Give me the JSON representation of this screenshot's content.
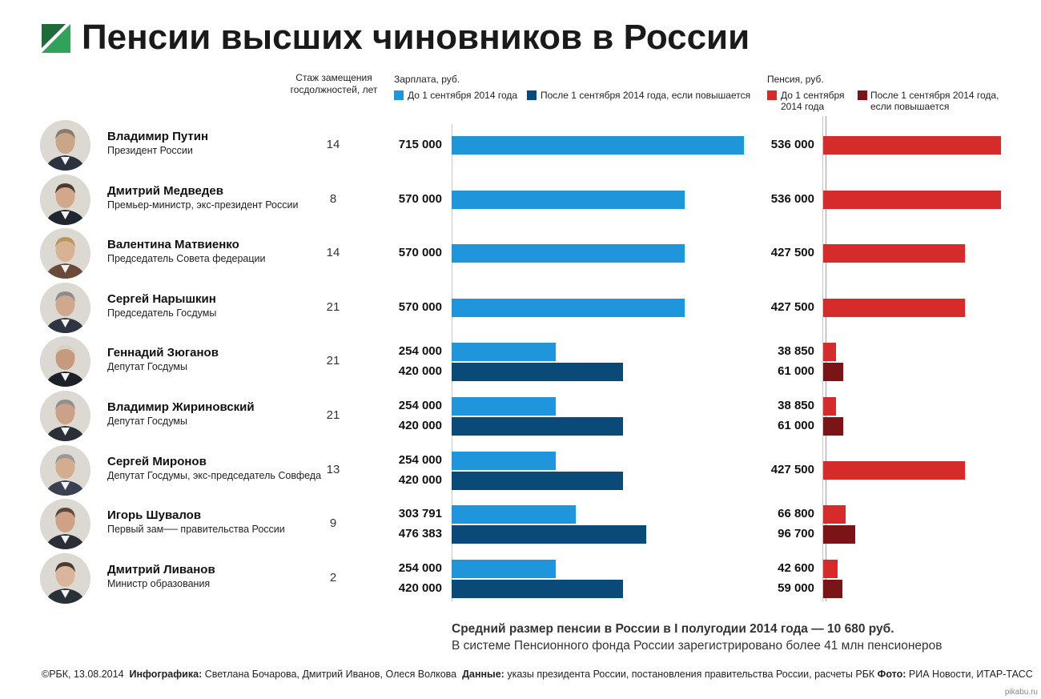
{
  "title": "Пенсии высших чиновников в России",
  "headers": {
    "tenure": "Стаж замещения госдолжностей, лет",
    "salary": "Зарплата, руб.",
    "pension": "Пенсия, руб."
  },
  "legend": {
    "salary_before": "До 1 сентября 2014 года",
    "salary_after": "После 1 сентября 2014 года, если повышается",
    "pension_before": "До 1 сентября 2014 года",
    "pension_after": "После 1 сентября 2014 года, если повышается"
  },
  "colors": {
    "salary_before": "#1f96dc",
    "salary_after": "#0a4a78",
    "pension_before": "#d62b2b",
    "pension_after": "#7a1416",
    "logo_green": "#1f6b3a"
  },
  "chart_data": {
    "type": "bar",
    "title": "Пенсии высших чиновников в России",
    "salary_axis_max": 715000,
    "pension_axis_max": 536000,
    "rows": [
      {
        "name": "Владимир Путин",
        "role": "Президент России",
        "tenure": "14",
        "salary_before": 715000,
        "salary_before_label": "715 000",
        "salary_after": null,
        "salary_after_label": null,
        "pension_before": 536000,
        "pension_before_label": "536 000",
        "pension_after": null,
        "pension_after_label": null
      },
      {
        "name": "Дмитрий Медведев",
        "role": "Премьер-министр, экс-президент России",
        "tenure": "8",
        "salary_before": 570000,
        "salary_before_label": "570 000",
        "salary_after": null,
        "salary_after_label": null,
        "pension_before": 536000,
        "pension_before_label": "536 000",
        "pension_after": null,
        "pension_after_label": null
      },
      {
        "name": "Валентина Матвиенко",
        "role": "Председатель Совета федерации",
        "tenure": "14",
        "salary_before": 570000,
        "salary_before_label": "570 000",
        "salary_after": null,
        "salary_after_label": null,
        "pension_before": 427500,
        "pension_before_label": "427 500",
        "pension_after": null,
        "pension_after_label": null
      },
      {
        "name": "Сергей Нарышкин",
        "role": "Председатель Госдумы",
        "tenure": "21",
        "salary_before": 570000,
        "salary_before_label": "570 000",
        "salary_after": null,
        "salary_after_label": null,
        "pension_before": 427500,
        "pension_before_label": "427 500",
        "pension_after": null,
        "pension_after_label": null
      },
      {
        "name": "Геннадий Зюганов",
        "role": "Депутат Госдумы",
        "tenure": "21",
        "salary_before": 254000,
        "salary_before_label": "254 000",
        "salary_after": 420000,
        "salary_after_label": "420 000",
        "pension_before": 38850,
        "pension_before_label": "38 850",
        "pension_after": 61000,
        "pension_after_label": "61 000"
      },
      {
        "name": "Владимир Жириновский",
        "role": "Депутат Госдумы",
        "tenure": "21",
        "salary_before": 254000,
        "salary_before_label": "254 000",
        "salary_after": 420000,
        "salary_after_label": "420 000",
        "pension_before": 38850,
        "pension_before_label": "38 850",
        "pension_after": 61000,
        "pension_after_label": "61 000"
      },
      {
        "name": "Сергей Миронов",
        "role": "Депутат Госдумы, экс-председатель Совфеда",
        "tenure": "13",
        "salary_before": 254000,
        "salary_before_label": "254 000",
        "salary_after": 420000,
        "salary_after_label": "420 000",
        "pension_before": 427500,
        "pension_before_label": "427 500",
        "pension_after": null,
        "pension_after_label": null
      },
      {
        "name": "Игорь Шувалов",
        "role": "Первый зам── правительства России",
        "tenure": "9",
        "salary_before": 303791,
        "salary_before_label": "303 791",
        "salary_after": 476383,
        "salary_after_label": "476 383",
        "pension_before": 66800,
        "pension_before_label": "66 800",
        "pension_after": 96700,
        "pension_after_label": "96 700"
      },
      {
        "name": "Дмитрий Ливанов",
        "role": "Министр образования",
        "tenure": "2",
        "salary_before": 254000,
        "salary_before_label": "254 000",
        "salary_after": 420000,
        "salary_after_label": "420 000",
        "pension_before": 42600,
        "pension_before_label": "42 600",
        "pension_after": 59000,
        "pension_after_label": "59 000"
      }
    ]
  },
  "footer": {
    "avg_pension": "Средний размер пенсии в России в I полугодии 2014 года — 10 680 руб.",
    "pensioners": "В системе Пенсионного фонда России зарегистрировано более 41 млн пенсионеров"
  },
  "credits": {
    "copyright": "©РБК, 13.08.2014",
    "infographic_label": "Инфографика:",
    "infographic": "Светлана Бочарова, Дмитрий Иванов, Олеся Волкова",
    "data_label": "Данные:",
    "data": "указы президента России, постановления правительства России, расчеты РБК",
    "photo_label": "Фото:",
    "photo": "РИА Новости, ИТАР-ТАСС"
  },
  "watermark": "pikabu.ru"
}
